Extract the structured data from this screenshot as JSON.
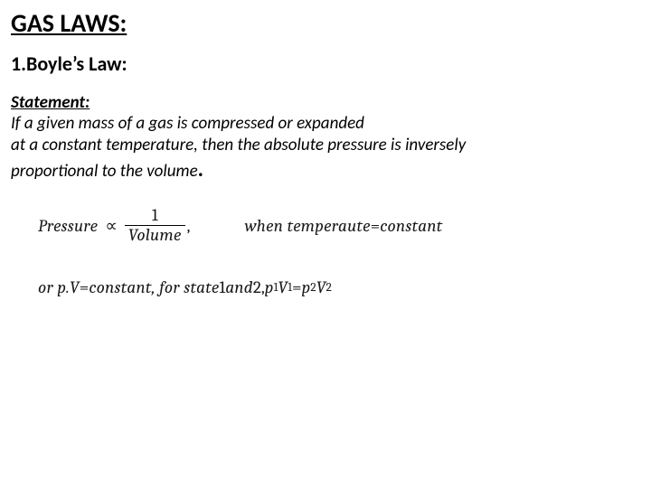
{
  "title": "GAS LAWS:",
  "subtitle": "1.Boyle’s Law:",
  "statement_label": "Statement:",
  "statement_line1": "If a given mass of a gas is compressed or expanded",
  "statement_line2": "at a constant temperature, then the absolute pressure is inversely",
  "statement_line3": "proportional to the volume",
  "period": ".",
  "eq1": {
    "lhs": "Pressure",
    "prop_symbol": "∝",
    "frac_num": "1",
    "frac_den": "Volume",
    "comma": ",",
    "cond_prefix": "when temperaute",
    "cond_eq": " = ",
    "cond_rhs": "constant"
  },
  "eq2": {
    "prefix": "or  p.V",
    "eq1": " = ",
    "constant": "constant",
    "mid": ", for state ",
    "one": "1",
    "and": " and ",
    "two": "2",
    "comma": ", ",
    "p1": "p",
    "s1": "1",
    "V1": "V",
    "s1b": "1",
    "eq2": " = ",
    "p2": "p",
    "s2": "2",
    "V2": "V",
    "s2b": "2"
  },
  "colors": {
    "text": "#000000",
    "background": "#ffffff"
  },
  "fonts": {
    "body": "Calibri",
    "math": "Cambria",
    "title_size": 28,
    "subtitle_size": 22,
    "body_size": 19
  }
}
